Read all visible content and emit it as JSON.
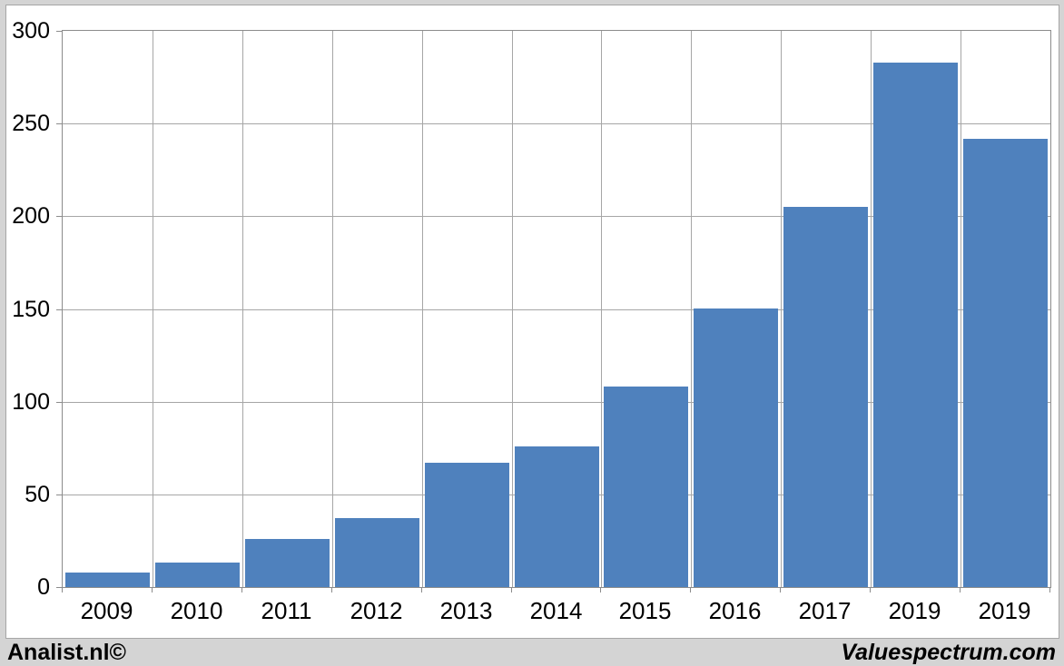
{
  "page": {
    "background_color": "#d4d4d4",
    "canvas_color": "#ffffff"
  },
  "footer": {
    "left_text": "Analist.nl©",
    "right_text": "Valuespectrum.com"
  },
  "chart_data": {
    "type": "bar",
    "title": "",
    "xlabel": "",
    "ylabel": "",
    "categories": [
      "2009",
      "2010",
      "2011",
      "2012",
      "2013",
      "2014",
      "2015",
      "2016",
      "2017",
      "2019",
      "2019"
    ],
    "values": [
      8,
      13,
      26,
      37,
      67,
      76,
      108,
      150,
      205,
      283,
      242
    ],
    "ylim": [
      0,
      300
    ],
    "yticks": [
      0,
      50,
      100,
      150,
      200,
      250,
      300
    ],
    "grid": true,
    "legend": "none",
    "bar_color": "#4F81BD",
    "gridline_color": "#a6a6a6",
    "axis_color": "#8c8c8c",
    "tick_label_color": "#000000",
    "bar_width_fraction": 0.94
  }
}
